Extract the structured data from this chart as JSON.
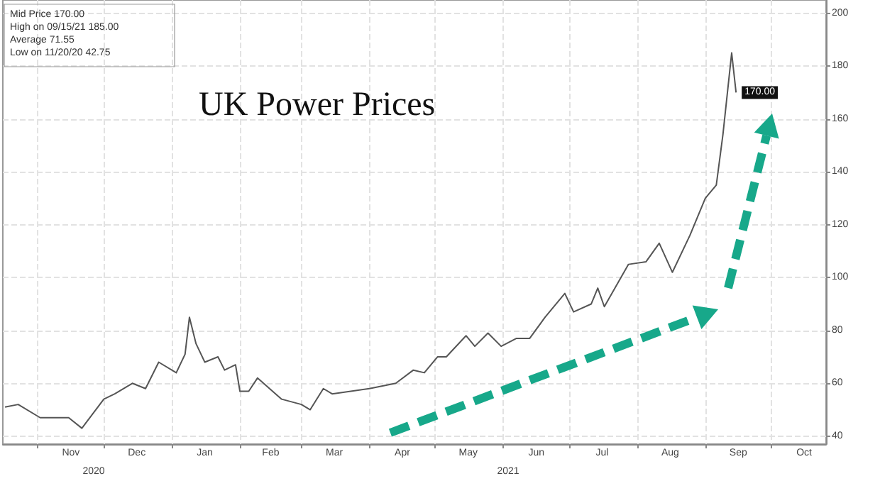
{
  "chart_data": {
    "type": "line",
    "title": "UK Power Prices",
    "x": [
      "2020-10-17",
      "2020-10-23",
      "2020-11-02",
      "2020-11-15",
      "2020-11-21",
      "2020-12-01",
      "2020-12-06",
      "2020-12-14",
      "2020-12-20",
      "2020-12-26",
      "2021-01-03",
      "2021-01-07",
      "2021-01-09",
      "2021-01-12",
      "2021-01-16",
      "2021-01-22",
      "2021-01-25",
      "2021-01-30",
      "2021-02-01",
      "2021-02-05",
      "2021-02-09",
      "2021-02-20",
      "2021-03-01",
      "2021-03-05",
      "2021-03-11",
      "2021-03-15",
      "2021-04-01",
      "2021-04-13",
      "2021-04-21",
      "2021-04-26",
      "2021-05-02",
      "2021-05-06",
      "2021-05-15",
      "2021-05-19",
      "2021-05-25",
      "2021-05-31",
      "2021-06-07",
      "2021-06-13",
      "2021-06-20",
      "2021-06-29",
      "2021-07-03",
      "2021-07-11",
      "2021-07-14",
      "2021-07-17",
      "2021-07-28",
      "2021-08-05",
      "2021-08-11",
      "2021-08-17",
      "2021-08-25",
      "2021-09-01",
      "2021-09-06",
      "2021-09-09",
      "2021-09-13",
      "2021-09-15"
    ],
    "series": [
      {
        "color": "#555555",
        "value_labels": [
          null,
          null,
          null,
          null,
          null,
          null,
          null,
          null,
          null,
          null,
          null,
          null,
          null,
          null,
          null,
          null,
          null,
          null,
          null,
          null,
          null,
          null,
          null,
          null,
          null,
          null,
          null,
          null,
          null,
          null,
          null,
          null,
          null,
          null,
          null,
          null,
          null,
          null,
          null,
          null,
          null,
          null,
          null,
          null,
          null,
          null,
          null,
          null,
          null,
          null,
          null,
          null,
          null,
          "170.00"
        ],
        "values": [
          51,
          52,
          47,
          47,
          43,
          54,
          56,
          60,
          58,
          68,
          64,
          71,
          85,
          75,
          68,
          70,
          65,
          67,
          57,
          57,
          62,
          54,
          52,
          50,
          58,
          56,
          58,
          60,
          65,
          64,
          70,
          70,
          78,
          74,
          79,
          74,
          77,
          77,
          85,
          94,
          87,
          90,
          96,
          89,
          105,
          106,
          113,
          102,
          116,
          130,
          135,
          154,
          185,
          170
        ]
      }
    ],
    "xlim": [
      "2020-10-16",
      "2021-10-26"
    ],
    "xticks": [
      {
        "value": "2020-11-01",
        "label": null
      },
      {
        "value": "2020-11-16",
        "label": "Nov"
      },
      {
        "value": "2020-12-01",
        "label": null
      },
      {
        "value": "2020-12-16",
        "label": "Dec"
      },
      {
        "value": "2021-01-01",
        "label": null
      },
      {
        "value": "2021-01-16",
        "label": "Jan"
      },
      {
        "value": "2021-02-01",
        "label": null
      },
      {
        "value": "2021-02-15",
        "label": "Feb"
      },
      {
        "value": "2021-03-01",
        "label": null
      },
      {
        "value": "2021-03-16",
        "label": "Mar"
      },
      {
        "value": "2021-04-01",
        "label": null
      },
      {
        "value": "2021-04-16",
        "label": "Apr"
      },
      {
        "value": "2021-05-01",
        "label": null
      },
      {
        "value": "2021-05-16",
        "label": "May"
      },
      {
        "value": "2021-06-01",
        "label": null
      },
      {
        "value": "2021-06-16",
        "label": "Jun"
      },
      {
        "value": "2021-07-01",
        "label": null
      },
      {
        "value": "2021-07-16",
        "label": "Jul"
      },
      {
        "value": "2021-08-01",
        "label": null
      },
      {
        "value": "2021-08-16",
        "label": "Aug"
      },
      {
        "value": "2021-09-01",
        "label": null
      },
      {
        "value": "2021-09-16",
        "label": "Sep"
      },
      {
        "value": "2021-10-01",
        "label": null
      },
      {
        "value": "2021-10-16",
        "label": "Oct"
      }
    ],
    "ylim": [
      37,
      205
    ],
    "yticks": [
      40,
      60,
      80,
      100,
      120,
      140,
      160,
      180,
      200
    ],
    "grid": true,
    "marker": "none",
    "line_style": "solid",
    "annotations": [
      "Mid Price 170.00",
      "High on 09/15/21 185.00",
      "Average 71.55",
      "Low on 11/20/20 42.75",
      "2020",
      "2021"
    ]
  }
}
